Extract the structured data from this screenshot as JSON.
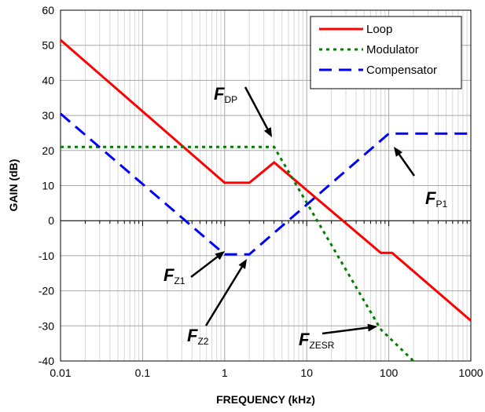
{
  "chart_data": {
    "type": "line",
    "title": "",
    "xlabel": "FREQUENCY (kHz)",
    "ylabel": "GAIN (dB)",
    "x_scale": "log",
    "xlim": [
      0.01,
      1000
    ],
    "ylim": [
      -40,
      60
    ],
    "x_ticks": [
      "0.01",
      "0.1",
      "1",
      "10",
      "100",
      "1000"
    ],
    "y_ticks": [
      "-40",
      "-30",
      "-20",
      "-10",
      "0",
      "10",
      "20",
      "30",
      "40",
      "50",
      "60"
    ],
    "grid": true,
    "legend_position": "top-right",
    "series": [
      {
        "name": "Loop",
        "color": "#ff0000",
        "style": "solid",
        "points": [
          [
            0.01,
            51.5
          ],
          [
            1.0,
            10.8
          ],
          [
            2.0,
            10.8
          ],
          [
            4.0,
            16.6
          ],
          [
            80,
            -9.2
          ],
          [
            110,
            -9.2
          ],
          [
            1000,
            -28.5
          ]
        ]
      },
      {
        "name": "Modulator",
        "color": "#008000",
        "style": "dotted",
        "points": [
          [
            0.01,
            21.0
          ],
          [
            4.0,
            21.0
          ],
          [
            80,
            -31.0
          ],
          [
            200,
            -40.0
          ]
        ]
      },
      {
        "name": "Compensator",
        "color": "#0000ff",
        "style": "dashed",
        "points": [
          [
            0.01,
            30.5
          ],
          [
            1.0,
            -9.6
          ],
          [
            2.0,
            -9.6
          ],
          [
            100,
            24.8
          ],
          [
            1000,
            24.8
          ]
        ]
      }
    ],
    "annotations": [
      {
        "main": "F",
        "sub": "DP",
        "target": [
          4.0,
          21.0
        ]
      },
      {
        "main": "F",
        "sub": "P1",
        "target": [
          100,
          24.8
        ]
      },
      {
        "main": "F",
        "sub": "Z1",
        "target": [
          1.0,
          -9.6
        ]
      },
      {
        "main": "F",
        "sub": "Z2",
        "target": [
          2.0,
          -9.6
        ]
      },
      {
        "main": "F",
        "sub": "ZESR",
        "target": [
          80,
          -31.0
        ]
      }
    ]
  }
}
